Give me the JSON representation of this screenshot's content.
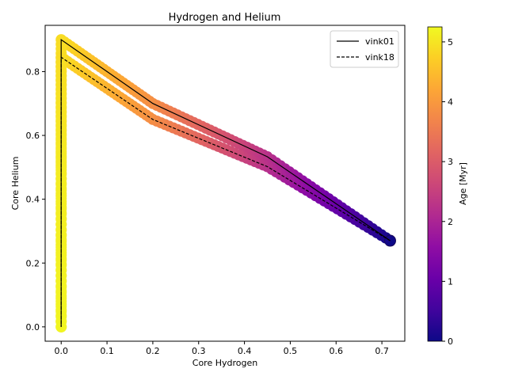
{
  "chart_data": {
    "type": "scatter",
    "title": "Hydrogen and Helium",
    "xlabel": "Core Hydrogen",
    "ylabel": "Core Helium",
    "xlim": [
      -0.035,
      0.75
    ],
    "ylim": [
      -0.045,
      0.945
    ],
    "xticks": [
      0.0,
      0.1,
      0.2,
      0.3,
      0.4,
      0.5,
      0.6,
      0.7
    ],
    "xtick_labels": [
      "0.0",
      "0.1",
      "0.2",
      "0.3",
      "0.4",
      "0.5",
      "0.6",
      "0.7"
    ],
    "yticks": [
      0.0,
      0.2,
      0.4,
      0.6,
      0.8
    ],
    "ytick_labels": [
      "0.0",
      "0.2",
      "0.4",
      "0.6",
      "0.8"
    ],
    "grid": false,
    "legend_position": "top-right",
    "colorbar": {
      "label": "Age [Myr]",
      "colormap": "plasma",
      "range": [
        0,
        5.25
      ],
      "ticks": [
        0,
        1,
        2,
        3,
        4,
        5
      ],
      "tick_labels": [
        "0",
        "1",
        "2",
        "3",
        "4",
        "5"
      ]
    },
    "series": [
      {
        "name": "vink01",
        "style": "solid",
        "color": "#000000",
        "x": [
          0.718,
          0.45,
          0.2,
          0.0,
          0.0,
          0.0
        ],
        "y": [
          0.27,
          0.533,
          0.7,
          0.9,
          0.5,
          0.0
        ],
        "age_myr": [
          0.0,
          2.2,
          3.8,
          4.9,
          5.1,
          5.2
        ]
      },
      {
        "name": "vink18",
        "style": "dashed",
        "color": "#000000",
        "x": [
          0.718,
          0.45,
          0.2,
          0.0,
          0.0,
          0.0
        ],
        "y": [
          0.27,
          0.502,
          0.65,
          0.845,
          0.45,
          0.0
        ],
        "age_myr": [
          0.0,
          2.2,
          3.8,
          4.9,
          5.1,
          5.2
        ]
      }
    ]
  }
}
